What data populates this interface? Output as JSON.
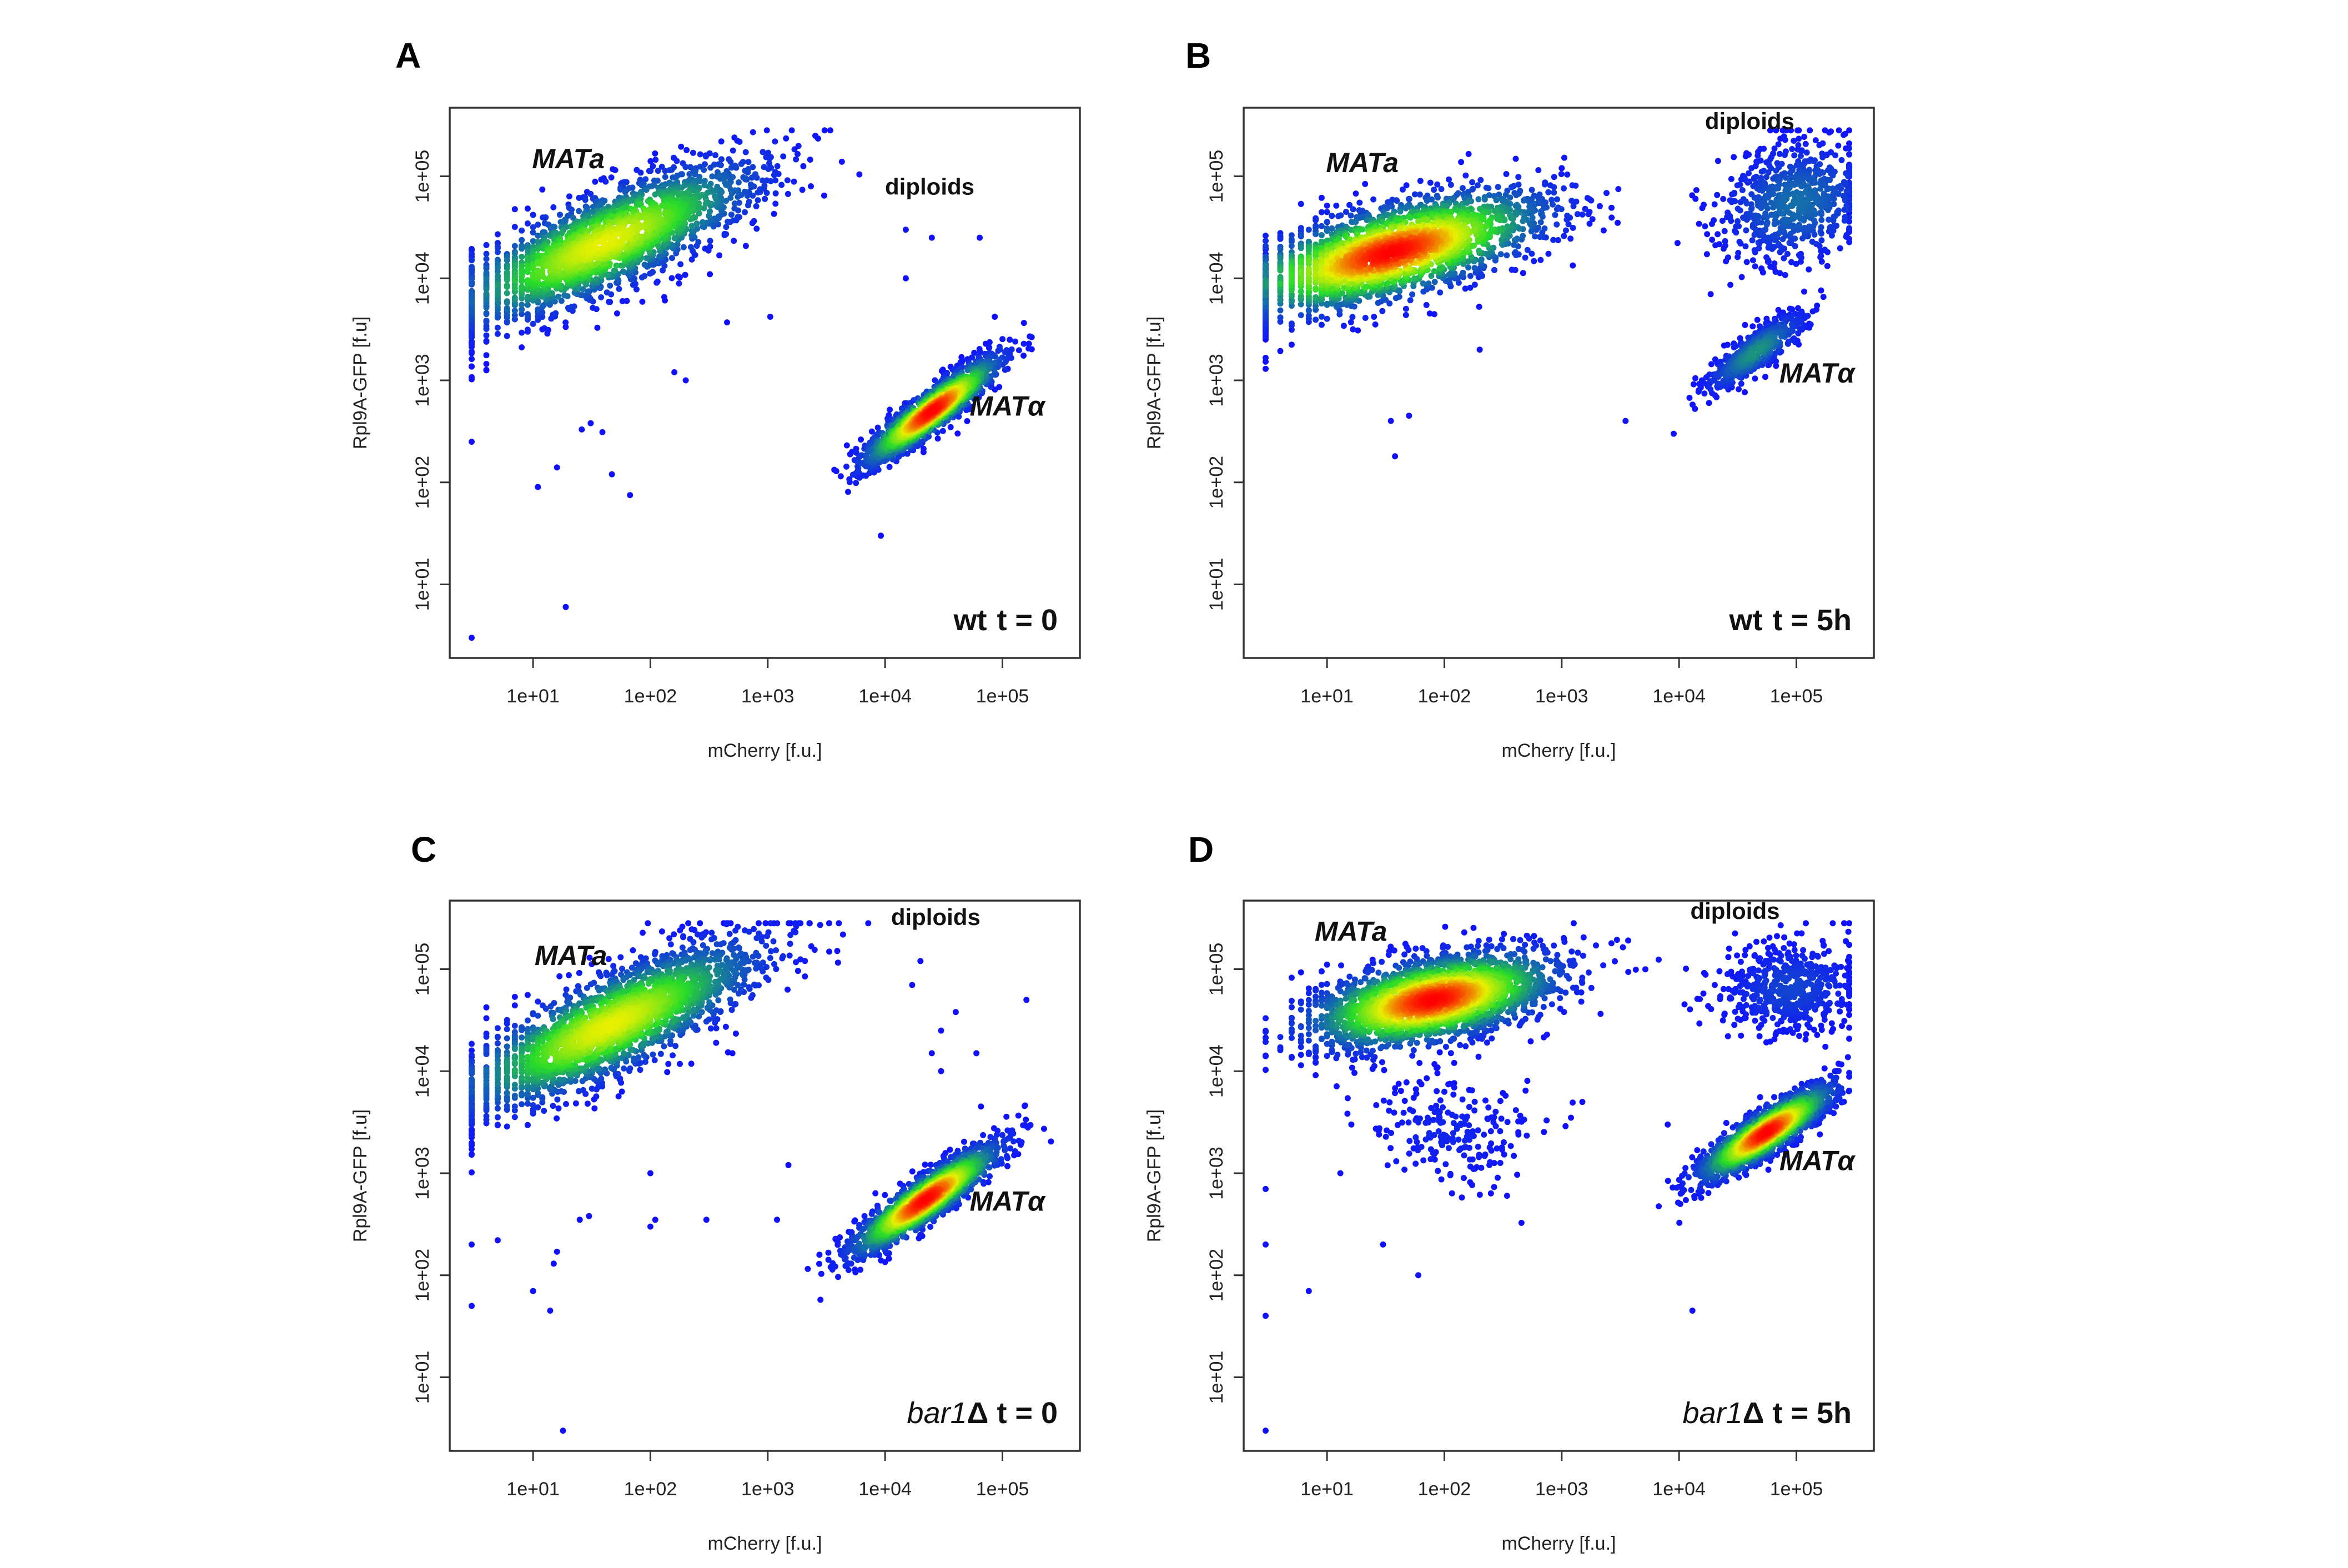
{
  "chart_data": [
    {
      "type": "scatter",
      "panel_label": "A",
      "xlabel": "mCherry [f.u.]",
      "ylabel": "Rpl9A-GFP [f.u]",
      "x_scale": "log",
      "y_scale": "log",
      "xlim": [
        1.95,
        457000
      ],
      "ylim": [
        1.9,
        470000
      ],
      "x_ticks": [
        "1e+01",
        "1e+02",
        "1e+03",
        "1e+04",
        "1e+05"
      ],
      "y_ticks": [
        "1e+01",
        "1e+02",
        "1e+03",
        "1e+04",
        "1e+05"
      ],
      "grid": false,
      "condition": {
        "strain": "wt",
        "time": "t = 0"
      },
      "annotations": [
        {
          "text": "MATa",
          "style": "italic",
          "x": 20,
          "y": 120000
        },
        {
          "text": "diploids",
          "style": "plain",
          "x": 24000,
          "y": 66000
        },
        {
          "text": "MATα",
          "style": "italic",
          "x": 110000,
          "y": 450
        }
      ],
      "clusters": [
        {
          "population": "MATa",
          "center": [
            40,
            22000
          ],
          "sd_decades": [
            0.75,
            0.22
          ],
          "slope_deg": 28,
          "n": 2200,
          "peak_density": 0.72
        },
        {
          "population": "MATα",
          "center": [
            25000,
            500
          ],
          "sd_decades": [
            0.38,
            0.08
          ],
          "slope_deg": 42,
          "n": 1600,
          "peak_density": 1.0
        }
      ],
      "outliers": [
        [
          3,
          250
        ],
        [
          3,
          3
        ],
        [
          11,
          90
        ],
        [
          16,
          140
        ],
        [
          26,
          330
        ],
        [
          31,
          380
        ],
        [
          39,
          310
        ],
        [
          47,
          120
        ],
        [
          67,
          75
        ],
        [
          19,
          6
        ],
        [
          160,
          1200
        ],
        [
          200,
          1000
        ],
        [
          1050,
          4200
        ],
        [
          450,
          3700
        ],
        [
          15000,
          30000
        ],
        [
          25000,
          25000
        ],
        [
          64000,
          25000
        ],
        [
          15000,
          10000
        ],
        [
          9200,
          30
        ],
        [
          86000,
          4200
        ]
      ]
    },
    {
      "type": "scatter",
      "panel_label": "B",
      "xlabel": "mCherry [f.u.]",
      "ylabel": "Rpl9A-GFP [f.u]",
      "x_scale": "log",
      "y_scale": "log",
      "xlim": [
        1.95,
        457000
      ],
      "ylim": [
        1.9,
        470000
      ],
      "x_ticks": [
        "1e+01",
        "1e+02",
        "1e+03",
        "1e+04",
        "1e+05"
      ],
      "y_ticks": [
        "1e+01",
        "1e+02",
        "1e+03",
        "1e+04",
        "1e+05"
      ],
      "grid": false,
      "condition": {
        "strain": "wt",
        "time": "t = 5h"
      },
      "annotations": [
        {
          "text": "MATa",
          "style": "italic",
          "x": 20,
          "y": 110000
        },
        {
          "text": "diploids",
          "style": "plain",
          "x": 40000,
          "y": 290000
        },
        {
          "text": "MATα",
          "style": "italic",
          "x": 150000,
          "y": 950
        }
      ],
      "clusters": [
        {
          "population": "MATa",
          "center": [
            35,
            18000
          ],
          "sd_decades": [
            0.7,
            0.22
          ],
          "slope_deg": 18,
          "n": 2400,
          "peak_density": 1.0
        },
        {
          "population": "MATα",
          "center": [
            45000,
            1900
          ],
          "sd_decades": [
            0.28,
            0.08
          ],
          "slope_deg": 42,
          "n": 500,
          "peak_density": 0.3
        },
        {
          "population": "diploids",
          "center": [
            100000,
            55000
          ],
          "sd_decades": [
            0.35,
            0.28
          ],
          "slope_deg": 30,
          "n": 700,
          "peak_density": 0.22
        }
      ],
      "outliers": [
        [
          1000,
          120000
        ],
        [
          3000,
          35000
        ],
        [
          200,
          2000
        ],
        [
          35,
          400
        ],
        [
          50,
          450
        ],
        [
          38,
          180
        ],
        [
          3500,
          400
        ],
        [
          9000,
          300
        ],
        [
          18000,
          600
        ]
      ]
    },
    {
      "type": "scatter",
      "panel_label": "C",
      "xlabel": "mCherry [f.u.]",
      "ylabel": "Rpl9A-GFP [f.u]",
      "x_scale": "log",
      "y_scale": "log",
      "xlim": [
        1.95,
        457000
      ],
      "ylim": [
        1.9,
        470000
      ],
      "x_ticks": [
        "1e+01",
        "1e+02",
        "1e+03",
        "1e+04",
        "1e+05"
      ],
      "y_ticks": [
        "1e+01",
        "1e+02",
        "1e+03",
        "1e+04",
        "1e+05"
      ],
      "grid": false,
      "condition": {
        "strain": "bar1",
        "time": "Δ t = 0"
      },
      "annotations": [
        {
          "text": "MATa",
          "style": "italic",
          "x": 21,
          "y": 110000
        },
        {
          "text": "diploids",
          "style": "plain",
          "x": 27000,
          "y": 270000
        },
        {
          "text": "MATα",
          "style": "italic",
          "x": 110000,
          "y": 430
        }
      ],
      "clusters": [
        {
          "population": "MATa",
          "center": [
            45,
            28000
          ],
          "sd_decades": [
            0.75,
            0.22
          ],
          "slope_deg": 30,
          "n": 2300,
          "peak_density": 0.72
        },
        {
          "population": "MATα",
          "center": [
            22000,
            550
          ],
          "sd_decades": [
            0.4,
            0.09
          ],
          "slope_deg": 40,
          "n": 1700,
          "peak_density": 1.0
        }
      ],
      "outliers": [
        [
          3,
          200
        ],
        [
          3,
          50
        ],
        [
          5,
          220
        ],
        [
          10,
          70
        ],
        [
          15,
          130
        ],
        [
          16,
          170
        ],
        [
          14,
          45
        ],
        [
          18,
          3
        ],
        [
          25,
          350
        ],
        [
          30,
          380
        ],
        [
          100,
          1000
        ],
        [
          110,
          350
        ],
        [
          100,
          300
        ],
        [
          300,
          350
        ],
        [
          1200,
          350
        ],
        [
          1500,
          1200
        ],
        [
          500,
          15000
        ],
        [
          20000,
          120000
        ],
        [
          17000,
          70000
        ],
        [
          30000,
          25000
        ],
        [
          25000,
          15000
        ],
        [
          30000,
          10000
        ],
        [
          60000,
          15000
        ],
        [
          40000,
          38000
        ],
        [
          160000,
          50000
        ]
      ]
    },
    {
      "type": "scatter",
      "panel_label": "D",
      "xlabel": "mCherry [f.u.]",
      "ylabel": "Rpl9A-GFP [f.u]",
      "x_scale": "log",
      "y_scale": "log",
      "xlim": [
        1.95,
        457000
      ],
      "ylim": [
        1.9,
        470000
      ],
      "x_ticks": [
        "1e+01",
        "1e+02",
        "1e+03",
        "1e+04",
        "1e+05"
      ],
      "y_ticks": [
        "1e+01",
        "1e+02",
        "1e+03",
        "1e+04",
        "1e+05"
      ],
      "grid": false,
      "condition": {
        "strain": "bar1",
        "time": "Δ t = 5h"
      },
      "annotations": [
        {
          "text": "MATa",
          "style": "italic",
          "x": 16,
          "y": 190000
        },
        {
          "text": "diploids",
          "style": "plain",
          "x": 30000,
          "y": 310000
        },
        {
          "text": "MATα",
          "style": "italic",
          "x": 150000,
          "y": 1070
        }
      ],
      "clusters": [
        {
          "population": "MATa",
          "center": [
            80,
            50000
          ],
          "sd_decades": [
            0.55,
            0.2
          ],
          "slope_deg": 14,
          "n": 2400,
          "peak_density": 1.0
        },
        {
          "population": "MATa-low",
          "center": [
            110,
            2500
          ],
          "sd_decades": [
            0.3,
            0.35
          ],
          "slope_deg": 80,
          "n": 220,
          "peak_density": 0.05
        },
        {
          "population": "MATα",
          "center": [
            55000,
            2500
          ],
          "sd_decades": [
            0.35,
            0.09
          ],
          "slope_deg": 38,
          "n": 1600,
          "peak_density": 1.0
        },
        {
          "population": "diploids",
          "center": [
            90000,
            65000
          ],
          "sd_decades": [
            0.3,
            0.22
          ],
          "slope_deg": 10,
          "n": 550,
          "peak_density": 0.12
        }
      ],
      "outliers": [
        [
          3,
          3
        ],
        [
          3,
          40
        ],
        [
          3,
          200
        ],
        [
          3,
          700
        ],
        [
          7,
          70
        ],
        [
          13,
          1000
        ],
        [
          30,
          200
        ],
        [
          60,
          100
        ],
        [
          1500,
          5000
        ],
        [
          1200,
          3500
        ],
        [
          13000,
          45
        ],
        [
          8000,
          3000
        ]
      ]
    }
  ]
}
